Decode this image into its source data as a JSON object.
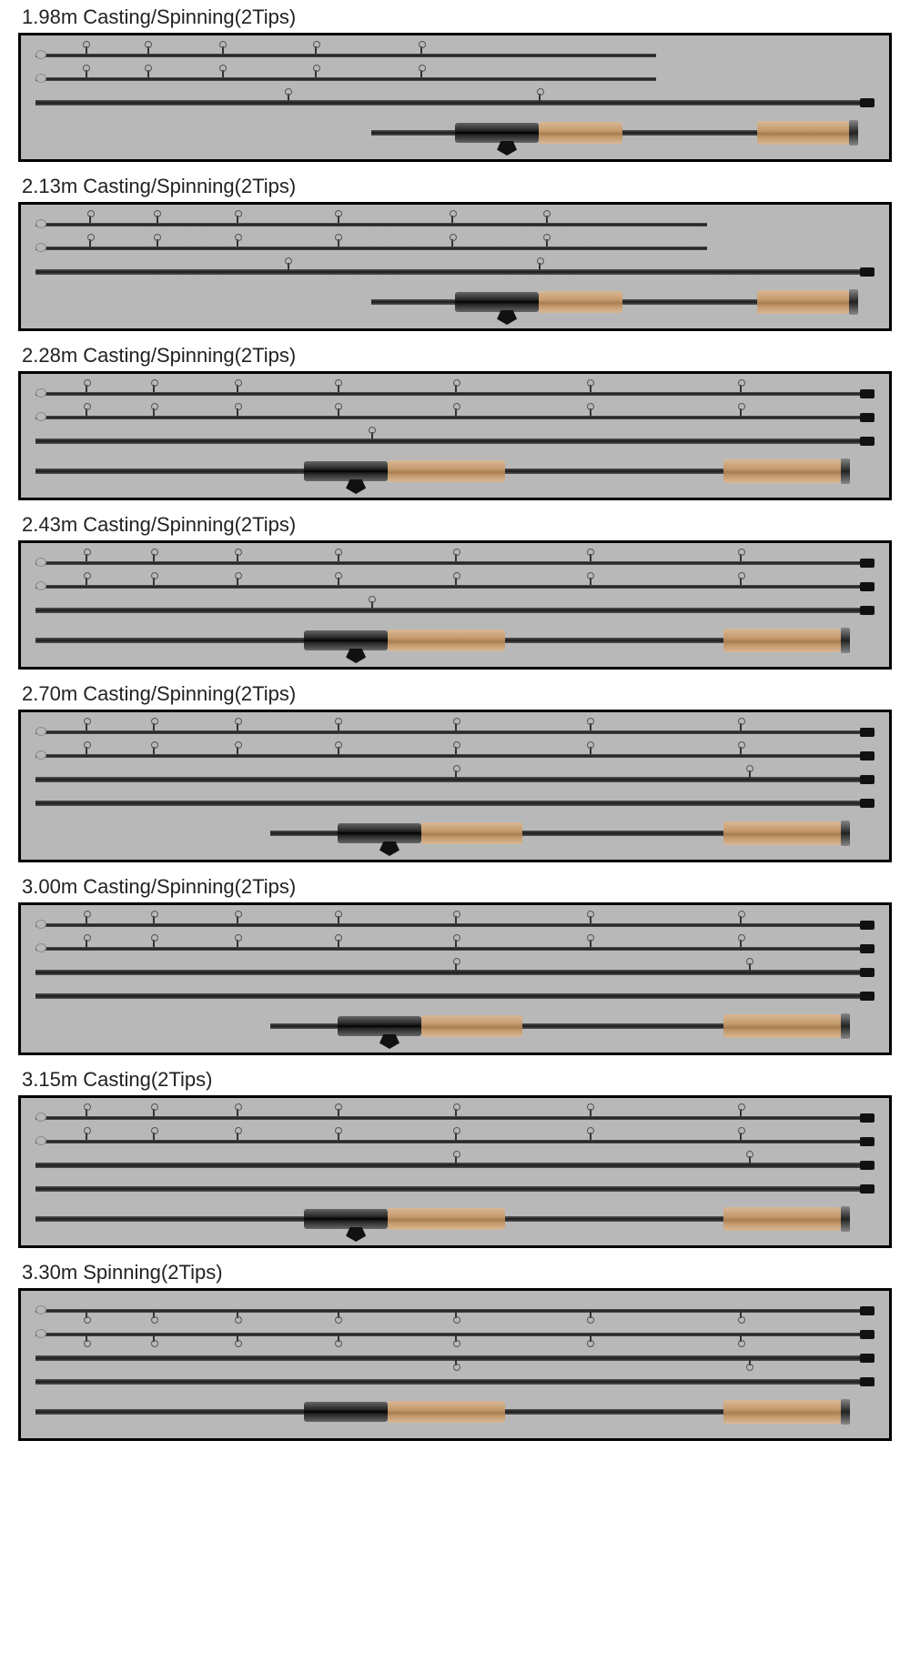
{
  "background": "#ffffff",
  "panel_bg": "#b8b8b8",
  "panel_border": "#000000",
  "title_color": "#222222",
  "title_fontsize": 22,
  "rod_blank_color": "#1a1a1a",
  "cork_color": "#c49a6c",
  "reel_seat_color": "#222222",
  "sections": [
    {
      "title": "1.98m Casting/Spinning(2Tips)",
      "rods": [
        {
          "type": "tip",
          "start_pct": 0,
          "len_pct": 74,
          "guides_pct": [
            8,
            18,
            30,
            45,
            62
          ],
          "tip_ring": true
        },
        {
          "type": "tip",
          "start_pct": 0,
          "len_pct": 74,
          "guides_pct": [
            8,
            18,
            30,
            45,
            62
          ],
          "tip_ring": true
        },
        {
          "type": "mid",
          "start_pct": 0,
          "len_pct": 100,
          "thick": true,
          "guides_pct": [
            30,
            60
          ],
          "ferrule_end": true
        }
      ],
      "handle": {
        "start_pct": 40,
        "blank_pre": 10,
        "seat_w": 10,
        "trigger": true,
        "cork_fore": 10,
        "blank_mid": 16,
        "cork_butt": 11,
        "endcap": true
      }
    },
    {
      "title": "2.13m Casting/Spinning(2Tips)",
      "rods": [
        {
          "type": "tip",
          "start_pct": 0,
          "len_pct": 80,
          "guides_pct": [
            8,
            18,
            30,
            45,
            62,
            76
          ],
          "tip_ring": true
        },
        {
          "type": "tip",
          "start_pct": 0,
          "len_pct": 80,
          "guides_pct": [
            8,
            18,
            30,
            45,
            62,
            76
          ],
          "tip_ring": true
        },
        {
          "type": "mid",
          "start_pct": 0,
          "len_pct": 100,
          "thick": true,
          "guides_pct": [
            30,
            60
          ],
          "ferrule_end": true
        }
      ],
      "handle": {
        "start_pct": 40,
        "blank_pre": 10,
        "seat_w": 10,
        "trigger": true,
        "cork_fore": 10,
        "blank_mid": 16,
        "cork_butt": 11,
        "endcap": true
      }
    },
    {
      "title": "2.28m Casting/Spinning(2Tips)",
      "rods": [
        {
          "type": "tip",
          "start_pct": 0,
          "len_pct": 100,
          "guides_pct": [
            6,
            14,
            24,
            36,
            50,
            66,
            84
          ],
          "tip_ring": true,
          "ferrule_end": true
        },
        {
          "type": "tip",
          "start_pct": 0,
          "len_pct": 100,
          "guides_pct": [
            6,
            14,
            24,
            36,
            50,
            66,
            84
          ],
          "tip_ring": true,
          "ferrule_end": true
        },
        {
          "type": "mid",
          "start_pct": 0,
          "len_pct": 100,
          "thick": true,
          "guides_pct": [
            40
          ],
          "ferrule_end": true
        }
      ],
      "handle": {
        "start_pct": 0,
        "blank_pre": 32,
        "seat_w": 10,
        "trigger": true,
        "cork_fore": 14,
        "blank_mid": 26,
        "cork_butt": 14,
        "endcap": true
      }
    },
    {
      "title": "2.43m Casting/Spinning(2Tips)",
      "rods": [
        {
          "type": "tip",
          "start_pct": 0,
          "len_pct": 100,
          "guides_pct": [
            6,
            14,
            24,
            36,
            50,
            66,
            84
          ],
          "tip_ring": true,
          "ferrule_end": true
        },
        {
          "type": "tip",
          "start_pct": 0,
          "len_pct": 100,
          "guides_pct": [
            6,
            14,
            24,
            36,
            50,
            66,
            84
          ],
          "tip_ring": true,
          "ferrule_end": true
        },
        {
          "type": "mid",
          "start_pct": 0,
          "len_pct": 100,
          "thick": true,
          "guides_pct": [
            40
          ],
          "ferrule_end": true
        }
      ],
      "handle": {
        "start_pct": 0,
        "blank_pre": 32,
        "seat_w": 10,
        "trigger": true,
        "cork_fore": 14,
        "blank_mid": 26,
        "cork_butt": 14,
        "endcap": true
      }
    },
    {
      "title": "2.70m Casting/Spinning(2Tips)",
      "rods": [
        {
          "type": "tip",
          "start_pct": 0,
          "len_pct": 100,
          "guides_pct": [
            6,
            14,
            24,
            36,
            50,
            66,
            84
          ],
          "tip_ring": true,
          "ferrule_end": true
        },
        {
          "type": "tip",
          "start_pct": 0,
          "len_pct": 100,
          "guides_pct": [
            6,
            14,
            24,
            36,
            50,
            66,
            84
          ],
          "tip_ring": true,
          "ferrule_end": true
        },
        {
          "type": "mid",
          "start_pct": 0,
          "len_pct": 100,
          "thick": true,
          "guides_pct": [
            50,
            85
          ],
          "ferrule_end": true
        },
        {
          "type": "mid",
          "start_pct": 0,
          "len_pct": 100,
          "thick": true,
          "guides_pct": [],
          "ferrule_end": true
        }
      ],
      "handle": {
        "start_pct": 28,
        "blank_pre": 8,
        "seat_w": 10,
        "trigger": true,
        "cork_fore": 12,
        "blank_mid": 24,
        "cork_butt": 14,
        "endcap": true
      }
    },
    {
      "title": "3.00m Casting/Spinning(2Tips)",
      "rods": [
        {
          "type": "tip",
          "start_pct": 0,
          "len_pct": 100,
          "guides_pct": [
            6,
            14,
            24,
            36,
            50,
            66,
            84
          ],
          "tip_ring": true,
          "ferrule_end": true
        },
        {
          "type": "tip",
          "start_pct": 0,
          "len_pct": 100,
          "guides_pct": [
            6,
            14,
            24,
            36,
            50,
            66,
            84
          ],
          "tip_ring": true,
          "ferrule_end": true
        },
        {
          "type": "mid",
          "start_pct": 0,
          "len_pct": 100,
          "thick": true,
          "guides_pct": [
            50,
            85
          ],
          "ferrule_end": true
        },
        {
          "type": "mid",
          "start_pct": 0,
          "len_pct": 100,
          "thick": true,
          "guides_pct": [],
          "ferrule_end": true
        }
      ],
      "handle": {
        "start_pct": 28,
        "blank_pre": 8,
        "seat_w": 10,
        "trigger": true,
        "cork_fore": 12,
        "blank_mid": 24,
        "cork_butt": 14,
        "endcap": true
      }
    },
    {
      "title": "3.15m Casting(2Tips)",
      "rods": [
        {
          "type": "tip",
          "start_pct": 0,
          "len_pct": 100,
          "guides_pct": [
            6,
            14,
            24,
            36,
            50,
            66,
            84
          ],
          "tip_ring": true,
          "ferrule_end": true
        },
        {
          "type": "tip",
          "start_pct": 0,
          "len_pct": 100,
          "guides_pct": [
            6,
            14,
            24,
            36,
            50,
            66,
            84
          ],
          "tip_ring": true,
          "ferrule_end": true
        },
        {
          "type": "mid",
          "start_pct": 0,
          "len_pct": 100,
          "thick": true,
          "guides_pct": [
            50,
            85
          ],
          "ferrule_end": true
        },
        {
          "type": "mid",
          "start_pct": 0,
          "len_pct": 100,
          "thick": true,
          "guides_pct": [],
          "ferrule_end": true
        }
      ],
      "handle": {
        "start_pct": 0,
        "blank_pre": 32,
        "seat_w": 10,
        "trigger": true,
        "cork_fore": 14,
        "blank_mid": 26,
        "cork_butt": 14,
        "endcap": true
      }
    },
    {
      "title": "3.30m Spinning(2Tips)",
      "rods": [
        {
          "type": "tip",
          "start_pct": 0,
          "len_pct": 100,
          "guides_pct": [
            6,
            14,
            24,
            36,
            50,
            66,
            84
          ],
          "tip_ring": true,
          "ferrule_end": true,
          "guides_down": true
        },
        {
          "type": "tip",
          "start_pct": 0,
          "len_pct": 100,
          "guides_pct": [
            6,
            14,
            24,
            36,
            50,
            66,
            84
          ],
          "tip_ring": true,
          "ferrule_end": true,
          "guides_down": true
        },
        {
          "type": "mid",
          "start_pct": 0,
          "len_pct": 100,
          "thick": true,
          "guides_pct": [
            50,
            85
          ],
          "guides_down": true,
          "ferrule_end": true
        },
        {
          "type": "mid",
          "start_pct": 0,
          "len_pct": 100,
          "thick": true,
          "guides_pct": [],
          "ferrule_end": true
        }
      ],
      "handle": {
        "start_pct": 0,
        "blank_pre": 32,
        "seat_w": 10,
        "trigger": false,
        "cork_fore": 14,
        "blank_mid": 26,
        "cork_butt": 14,
        "endcap": true
      }
    }
  ]
}
